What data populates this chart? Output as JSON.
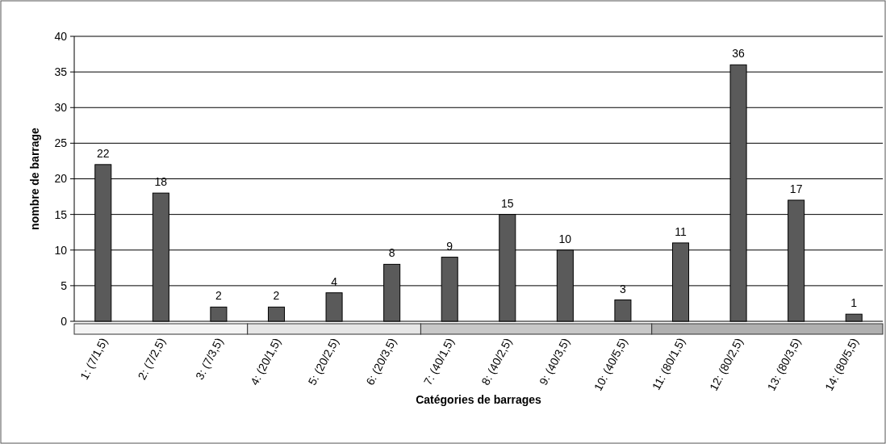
{
  "chart_data": {
    "type": "bar",
    "xlabel": "Catégories de barrages",
    "ylabel": "nombre de barrage",
    "categories": [
      "1: (7/1,5)",
      "2: (7/2,5)",
      "3: (7/3,5)",
      "4: (20/1,5)",
      "5: (20/2,5)",
      "6: (20/3,5)",
      "7: (40/1,5)",
      "8: (40/2,5)",
      "9: (40/3,5)",
      "10: (40/5,5)",
      "11: (80/1,5)",
      "12: (80/2,5)",
      "13: (80/3,5)",
      "14: (80/5,5)"
    ],
    "values": [
      22,
      18,
      2,
      2,
      4,
      8,
      9,
      15,
      10,
      3,
      11,
      36,
      17,
      1
    ],
    "color": "#5a5a5a",
    "ylim": [
      0,
      40
    ],
    "yticks": [
      0,
      5,
      10,
      15,
      20,
      25,
      30,
      35,
      40
    ],
    "grid": "y",
    "data_labels": true
  }
}
